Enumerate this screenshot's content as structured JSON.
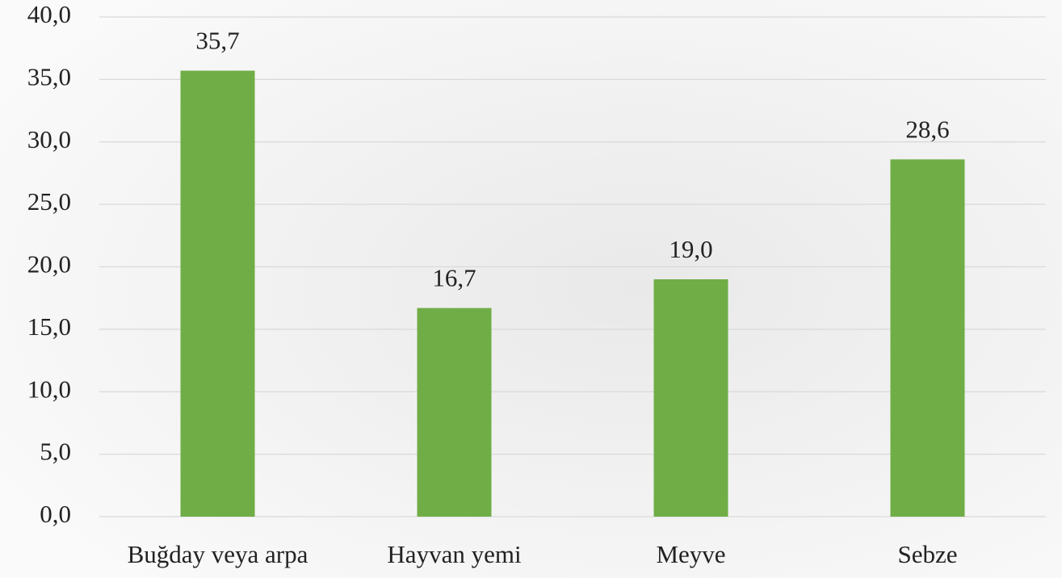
{
  "chart_data": {
    "type": "bar",
    "categories": [
      "Buğday veya arpa",
      "Hayvan yemi",
      "Meyve",
      "Sebze"
    ],
    "values": [
      35.7,
      16.7,
      19.0,
      28.6
    ],
    "value_labels": [
      "35,7",
      "16,7",
      "19,0",
      "28,6"
    ],
    "color": "#70ad47",
    "ylim": [
      0,
      40
    ],
    "yticks": [
      {
        "value": 0,
        "label": "0,0"
      },
      {
        "value": 5,
        "label": "5,0"
      },
      {
        "value": 10,
        "label": "10,0"
      },
      {
        "value": 15,
        "label": "15,0"
      },
      {
        "value": 20,
        "label": "20,0"
      },
      {
        "value": 25,
        "label": "25,0"
      },
      {
        "value": 30,
        "label": "30,0"
      },
      {
        "value": 35,
        "label": "35,0"
      },
      {
        "value": 40,
        "label": "40,0"
      }
    ],
    "grid": true
  }
}
